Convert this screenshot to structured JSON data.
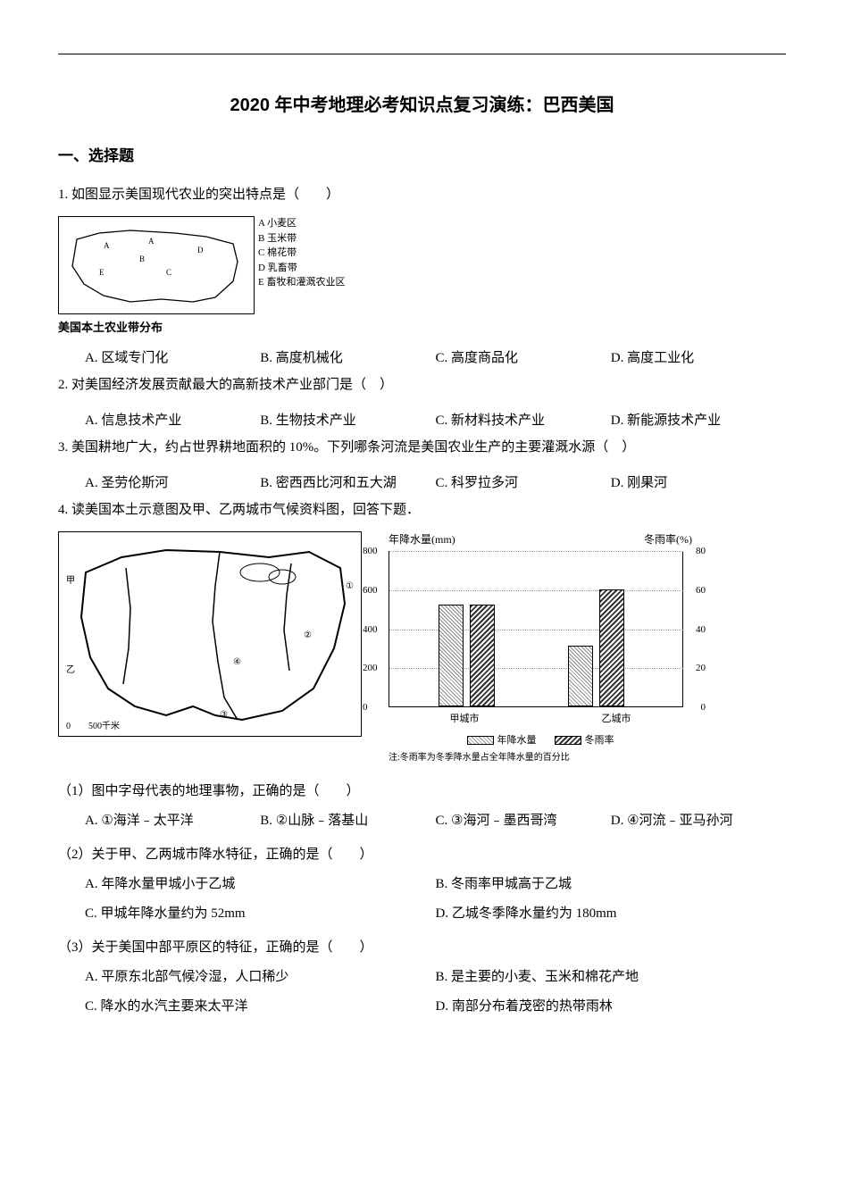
{
  "doc": {
    "title": "2020 年中考地理必考知识点复习演练：巴西美国",
    "section1_header": "一、选择题"
  },
  "q1": {
    "number": "1.",
    "text": "如图显示美国现代农业的突出特点是（　　）",
    "legend": {
      "a": "A  小麦区",
      "b": "B  玉米带",
      "c": "C  棉花带",
      "d": "D  乳畜带",
      "e": "E  畜牧和灌溉农业区"
    },
    "caption": "美国本土农业带分布",
    "options": {
      "a": "A. 区域专门化",
      "b": "B. 高度机械化",
      "c": "C. 高度商品化",
      "d": "D. 高度工业化"
    }
  },
  "q2": {
    "number": "2.",
    "text": "对美国经济发展贡献最大的高新技术产业部门是（　）",
    "options": {
      "a": "A. 信息技术产业",
      "b": "B. 生物技术产业",
      "c": "C. 新材料技术产业",
      "d": "D. 新能源技术产业"
    }
  },
  "q3": {
    "number": "3.",
    "text": "美国耕地广大，约占世界耕地面积的 10%。下列哪条河流是美国农业生产的主要灌溉水源（　）",
    "options": {
      "a": "A. 圣劳伦斯河",
      "b": "B. 密西西比河和五大湖",
      "c": "C. 科罗拉多河",
      "d": "D. 刚果河"
    }
  },
  "q4": {
    "number": "4.",
    "text": "读美国本土示意图及甲、乙两城市气候资料图，回答下题．",
    "map_labels": {
      "jia": "甲",
      "yi": "乙",
      "m1": "①",
      "m2": "②",
      "m3": "③",
      "m4": "④",
      "scale": "0　　500千米"
    },
    "chart": {
      "y1_title": "年降水量(mm)",
      "y2_title": "冬雨率(%)",
      "y1_ticks": [
        "0",
        "200",
        "400",
        "600",
        "800"
      ],
      "y2_ticks": [
        "0",
        "20",
        "40",
        "60",
        "80"
      ],
      "y1_max": 800,
      "y2_max": 80,
      "series": {
        "city_a_precip": 520,
        "city_a_rate": 52,
        "city_b_precip": 310,
        "city_b_rate": 60
      },
      "x_labels": {
        "a": "甲城市",
        "b": "乙城市"
      },
      "legend": {
        "precip": "年降水量",
        "rate": "冬雨率"
      },
      "note": "注:冬雨率为冬季降水量占全年降水量的百分比",
      "colors": {
        "bar_border": "#000000",
        "axis": "#000000"
      }
    },
    "sub1": {
      "text": "（1）图中字母代表的地理事物，正确的是（　　）",
      "options": {
        "a": "A. ①海洋﹣太平洋",
        "b": "B. ②山脉﹣落基山",
        "c": "C. ③海河﹣墨西哥湾",
        "d": "D. ④河流﹣亚马孙河"
      }
    },
    "sub2": {
      "text": "（2）关于甲、乙两城市降水特征，正确的是（　　）",
      "options": {
        "a": "A. 年降水量甲城小于乙城",
        "b": "B. 冬雨率甲城高于乙城",
        "c": "C. 甲城年降水量约为 52mm",
        "d": "D. 乙城冬季降水量约为 180mm"
      }
    },
    "sub3": {
      "text": "（3）关于美国中部平原区的特征，正确的是（　　）",
      "options": {
        "a": "A. 平原东北部气候冷湿，人口稀少",
        "b": "B. 是主要的小麦、玉米和棉花产地",
        "c": "C. 降水的水汽主要来太平洋",
        "d": "D. 南部分布着茂密的热带雨林"
      }
    }
  }
}
